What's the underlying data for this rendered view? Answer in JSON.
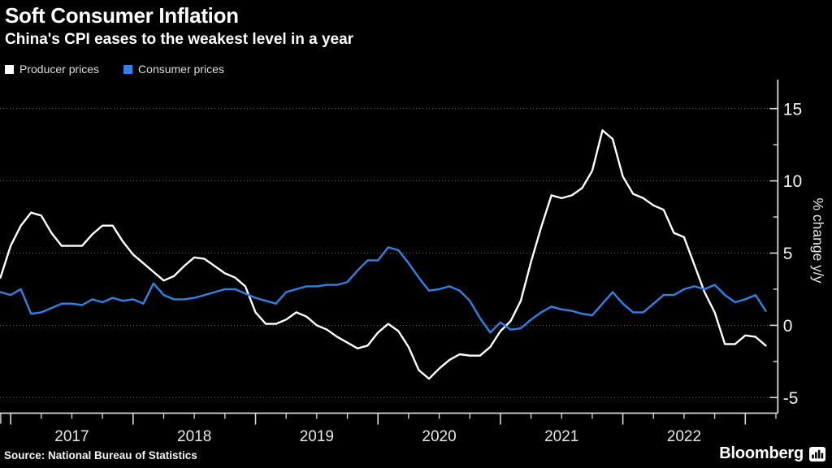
{
  "header": {
    "title": "Soft Consumer Inflation",
    "subtitle": "China's CPI eases to the weakest level in a year"
  },
  "legend": [
    {
      "label": "Producer prices",
      "color": "#ffffff"
    },
    {
      "label": "Consumer prices",
      "color": "#2d83e8"
    }
  ],
  "footer": {
    "source": "Source: National Bureau of Statistics",
    "brand": "Bloomberg"
  },
  "chart_data": {
    "type": "line",
    "title": "Soft Consumer Inflation",
    "subtitle": "China's CPI eases to the weakest level in a year",
    "ylabel": "% change y/y",
    "ylim": [
      -6.1,
      17
    ],
    "y_major_ticks": [
      15,
      10,
      5,
      0,
      -5
    ],
    "y_minor_ticks": [
      12.5,
      7.5,
      2.5,
      -2.5
    ],
    "x_year_labels": [
      "2017",
      "2018",
      "2019",
      "2020",
      "2021",
      "2022"
    ],
    "frequency": "monthly",
    "x_start": "2016-11",
    "x_end": "2023-02",
    "grid": "dotted horizontal lines at major y ticks",
    "legend_position": "top-left",
    "series": [
      {
        "name": "Producer prices",
        "color": "#ffffff",
        "values": [
          3.3,
          5.5,
          6.9,
          7.8,
          7.6,
          6.4,
          5.5,
          5.5,
          5.5,
          6.3,
          6.9,
          6.9,
          5.8,
          4.9,
          4.3,
          3.7,
          3.1,
          3.4,
          4.1,
          4.7,
          4.6,
          4.1,
          3.6,
          3.3,
          2.7,
          0.9,
          0.1,
          0.1,
          0.4,
          0.9,
          0.6,
          0.0,
          -0.3,
          -0.8,
          -1.2,
          -1.6,
          -1.4,
          -0.5,
          0.1,
          -0.4,
          -1.5,
          -3.1,
          -3.7,
          -3.0,
          -2.4,
          -2.0,
          -2.1,
          -2.1,
          -1.5,
          -0.4,
          0.3,
          1.7,
          4.4,
          6.8,
          9.0,
          8.8,
          9.0,
          9.5,
          10.7,
          13.5,
          12.9,
          10.3,
          9.1,
          8.8,
          8.3,
          8.0,
          6.4,
          6.1,
          4.2,
          2.3,
          0.9,
          -1.3,
          -1.3,
          -0.7,
          -0.8,
          -1.4
        ]
      },
      {
        "name": "Consumer prices",
        "color": "#2d83e8",
        "values": [
          2.3,
          2.1,
          2.5,
          0.8,
          0.9,
          1.2,
          1.5,
          1.5,
          1.4,
          1.8,
          1.6,
          1.9,
          1.7,
          1.8,
          1.5,
          2.9,
          2.1,
          1.8,
          1.8,
          1.9,
          2.1,
          2.3,
          2.5,
          2.5,
          2.2,
          1.9,
          1.7,
          1.5,
          2.3,
          2.5,
          2.7,
          2.7,
          2.8,
          2.8,
          3.0,
          3.8,
          4.5,
          4.5,
          5.4,
          5.2,
          4.3,
          3.3,
          2.4,
          2.5,
          2.7,
          2.4,
          1.7,
          0.5,
          -0.5,
          0.2,
          -0.3,
          -0.2,
          0.4,
          0.9,
          1.3,
          1.1,
          1.0,
          0.8,
          0.7,
          1.5,
          2.3,
          1.5,
          0.9,
          0.9,
          1.5,
          2.1,
          2.1,
          2.5,
          2.7,
          2.5,
          2.8,
          2.1,
          1.6,
          1.8,
          2.1,
          1.0
        ]
      }
    ]
  }
}
